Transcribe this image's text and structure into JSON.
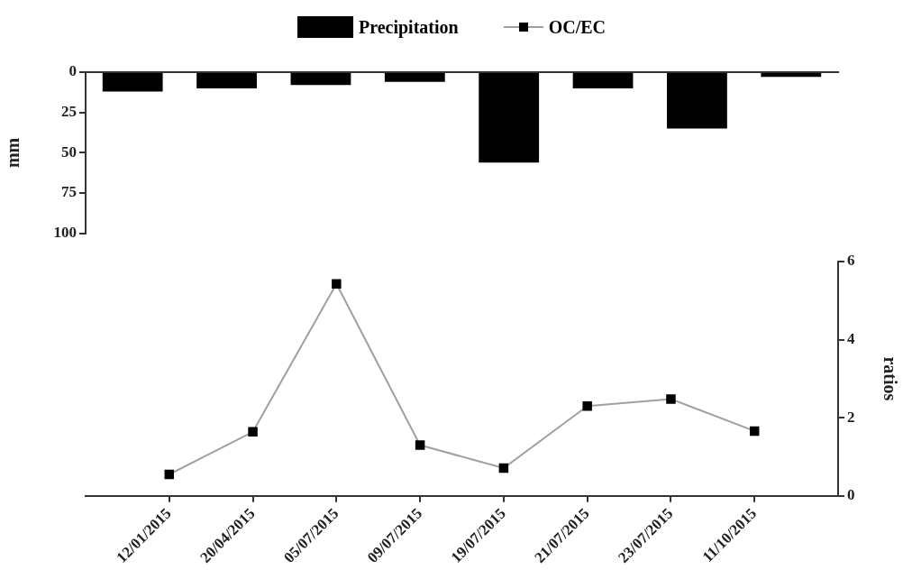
{
  "chart_data": [
    {
      "type": "bar",
      "categories": [
        null,
        null,
        null,
        null,
        null,
        null,
        null,
        null
      ],
      "ylabel": "mm",
      "ylim": [
        100,
        0
      ],
      "yticks": [
        0,
        25,
        50,
        75,
        100
      ],
      "tick_labels": "y",
      "legend": "top",
      "series": [
        {
          "name": "Precipitation",
          "color": "#000000",
          "values": [
            12,
            10,
            8,
            6,
            56,
            10,
            35,
            3
          ]
        }
      ]
    },
    {
      "type": "line",
      "categories": [
        "12/01/2015",
        "20/04/2015",
        "05/07/2015",
        "09/07/2015",
        "19/07/2015",
        "21/07/2015",
        "23/07/2015",
        "11/10/2015"
      ],
      "y2label": "ratios",
      "y2lim": [
        0,
        6
      ],
      "y2ticks": [
        0,
        2,
        4,
        6
      ],
      "legend": "top",
      "marker": "square",
      "line_style": "solid",
      "series": [
        {
          "name": "OC/EC",
          "color": "#a0a0a0",
          "axis": "y2",
          "values": [
            0.55,
            1.64,
            5.43,
            1.3,
            0.71,
            2.3,
            2.48,
            1.66
          ]
        }
      ]
    }
  ]
}
